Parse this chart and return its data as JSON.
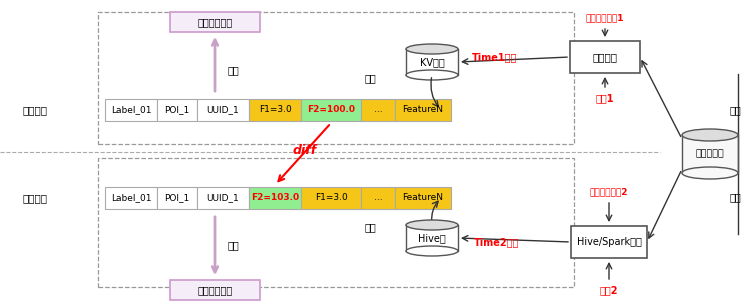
{
  "bg_color": "#ffffff",
  "online_label": "线上流程",
  "offline_label": "线下流程",
  "online_box_label": "模型在线预测",
  "offline_box_label": "模型离线训练",
  "input_label": "输入",
  "fetch_label": "拉取",
  "diff_label": "diff",
  "kv_label": "KV系统",
  "hive_label": "Hive表",
  "feature_platform_label": "特征平台",
  "feature_source_label": "特征数据源",
  "time1_label": "Time1更新",
  "time2_label": "Time2更新",
  "config1_label": "特征配置文件1",
  "config2_label": "特征配置文件2",
  "operator1_label": "算子1",
  "operator2_label": "算子2",
  "hive_spark_label": "Hive/Spark任务",
  "extract_label": "抽取",
  "online_row": [
    "Label_01",
    "POI_1",
    "UUID_1",
    "F1=3.0",
    "F2=100.0",
    "...",
    "FeatureN"
  ],
  "offline_row": [
    "Label_01",
    "POI_1",
    "UUID_1",
    "F2=103.0",
    "F1=3.0",
    "...",
    "FeatureN"
  ],
  "online_cell_colors": [
    "#ffffff",
    "#ffffff",
    "#ffffff",
    "#f5c518",
    "#90ee90",
    "#f5c518",
    "#f5c518"
  ],
  "offline_cell_colors": [
    "#ffffff",
    "#ffffff",
    "#ffffff",
    "#90ee90",
    "#f5c518",
    "#f5c518",
    "#f5c518"
  ],
  "f2_online_text_color": "#ff0000",
  "f2_offline_text_color": "#ff0000",
  "diff_color": "#ff0000",
  "time_color": "#ff0000",
  "config_color": "#ff0000",
  "operator_color": "#ff0000",
  "red_arrow_color": "#ff0000",
  "purple_color": "#c8a0c8",
  "box_border_color": "#555555"
}
